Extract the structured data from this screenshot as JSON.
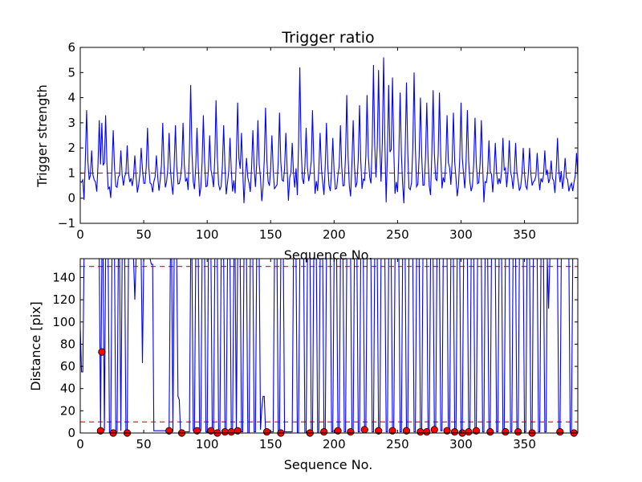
{
  "chart_data": [
    {
      "type": "line",
      "title": "Trigger ratio",
      "xlabel": "Sequence No.",
      "ylabel": "Trigger strength",
      "xlim": [
        0,
        392
      ],
      "ylim": [
        -1,
        6
      ],
      "xticks": [
        0,
        50,
        100,
        150,
        200,
        250,
        300,
        350
      ],
      "yticks": [
        -1,
        0,
        1,
        2,
        3,
        4,
        5,
        6
      ],
      "threshold": 1.0,
      "line_color": "#0000ff",
      "threshold_color": "#ff0000",
      "peaks": [
        [
          5,
          3.5
        ],
        [
          9,
          1.9
        ],
        [
          15,
          3.1
        ],
        [
          17,
          3.0
        ],
        [
          20,
          3.3
        ],
        [
          26,
          2.7
        ],
        [
          32,
          1.9
        ],
        [
          37,
          2.1
        ],
        [
          43,
          1.7
        ],
        [
          48,
          2.0
        ],
        [
          53,
          2.8
        ],
        [
          60,
          1.7
        ],
        [
          65,
          3.0
        ],
        [
          70,
          2.6
        ],
        [
          75,
          2.9
        ],
        [
          81,
          3.0
        ],
        [
          87,
          4.5
        ],
        [
          92,
          2.8
        ],
        [
          97,
          3.3
        ],
        [
          102,
          2.5
        ],
        [
          107,
          3.9
        ],
        [
          113,
          2.9
        ],
        [
          118,
          2.4
        ],
        [
          124,
          3.8
        ],
        [
          127,
          2.6
        ],
        [
          131,
          1.6
        ],
        [
          136,
          2.7
        ],
        [
          140,
          3.1
        ],
        [
          146,
          3.6
        ],
        [
          151,
          2.5
        ],
        [
          157,
          3.4
        ],
        [
          162,
          2.6
        ],
        [
          167,
          2.2
        ],
        [
          173,
          5.2
        ],
        [
          178,
          2.8
        ],
        [
          183,
          3.5
        ],
        [
          189,
          2.6
        ],
        [
          194,
          3.0
        ],
        [
          199,
          2.4
        ],
        [
          205,
          2.9
        ],
        [
          210,
          4.1
        ],
        [
          215,
          3.1
        ],
        [
          220,
          3.7
        ],
        [
          226,
          4.1
        ],
        [
          231,
          5.3
        ],
        [
          235,
          5.1
        ],
        [
          239,
          5.6
        ],
        [
          243,
          4.5
        ],
        [
          246,
          4.8
        ],
        [
          252,
          4.2
        ],
        [
          257,
          4.6
        ],
        [
          263,
          5.0
        ],
        [
          268,
          4.0
        ],
        [
          273,
          3.8
        ],
        [
          278,
          4.3
        ],
        [
          283,
          4.2
        ],
        [
          289,
          3.3
        ],
        [
          294,
          3.4
        ],
        [
          300,
          3.8
        ],
        [
          305,
          3.5
        ],
        [
          311,
          3.2
        ],
        [
          316,
          3.1
        ],
        [
          322,
          2.3
        ],
        [
          327,
          2.2
        ],
        [
          333,
          2.4
        ],
        [
          338,
          2.3
        ],
        [
          343,
          2.2
        ],
        [
          349,
          2.0
        ],
        [
          354,
          2.0
        ],
        [
          360,
          1.8
        ],
        [
          366,
          1.9
        ],
        [
          371,
          1.5
        ],
        [
          376,
          2.4
        ],
        [
          382,
          1.6
        ],
        [
          391,
          1.8
        ]
      ]
    },
    {
      "type": "line",
      "title": "",
      "xlabel": "Sequence No.",
      "ylabel": "Distance [pix]",
      "xlim": [
        0,
        392
      ],
      "ylim": [
        0,
        157
      ],
      "xticks": [
        0,
        50,
        100,
        150,
        200,
        250,
        300,
        350
      ],
      "yticks": [
        0,
        20,
        40,
        60,
        80,
        100,
        120,
        140
      ],
      "thresholds": [
        10,
        150
      ],
      "line_color": "#0000ff",
      "threshold_color": "#ff0000",
      "marker_color": "#ff0000",
      "line_points": [
        [
          0,
          95
        ],
        [
          1,
          55
        ],
        [
          2,
          55
        ],
        [
          3,
          157
        ],
        [
          15,
          157
        ],
        [
          16,
          2
        ],
        [
          17,
          157
        ],
        [
          18,
          157
        ],
        [
          19,
          2
        ],
        [
          20,
          157
        ],
        [
          22,
          157
        ],
        [
          23,
          0
        ],
        [
          24,
          0
        ],
        [
          25,
          157
        ],
        [
          27,
          157
        ],
        [
          28,
          1
        ],
        [
          29,
          1
        ],
        [
          30,
          157
        ],
        [
          31,
          157
        ],
        [
          32,
          2
        ],
        [
          33,
          157
        ],
        [
          35,
          157
        ],
        [
          36,
          1
        ],
        [
          37,
          1
        ],
        [
          38,
          157
        ],
        [
          42,
          157
        ],
        [
          43,
          120
        ],
        [
          44,
          157
        ],
        [
          48,
          157
        ],
        [
          49,
          63
        ],
        [
          50,
          157
        ],
        [
          55,
          157
        ],
        [
          56,
          152
        ],
        [
          57,
          152
        ],
        [
          58,
          2
        ],
        [
          59,
          2
        ],
        [
          60,
          2
        ],
        [
          70,
          2
        ],
        [
          71,
          157
        ],
        [
          72,
          157
        ],
        [
          73,
          1
        ],
        [
          74,
          157
        ],
        [
          76,
          157
        ],
        [
          77,
          33
        ],
        [
          78,
          30
        ],
        [
          79,
          2
        ],
        [
          80,
          1
        ],
        [
          86,
          1
        ],
        [
          87,
          157
        ],
        [
          88,
          157
        ],
        [
          89,
          2
        ],
        [
          90,
          2
        ],
        [
          91,
          157
        ],
        [
          93,
          157
        ],
        [
          94,
          2
        ],
        [
          95,
          2
        ],
        [
          96,
          157
        ],
        [
          98,
          157
        ],
        [
          99,
          1
        ],
        [
          100,
          1
        ],
        [
          101,
          157
        ],
        [
          103,
          157
        ],
        [
          104,
          1
        ],
        [
          105,
          1
        ],
        [
          106,
          157
        ],
        [
          108,
          157
        ],
        [
          109,
          1
        ],
        [
          110,
          1
        ],
        [
          111,
          157
        ],
        [
          113,
          157
        ],
        [
          114,
          2
        ],
        [
          115,
          2
        ],
        [
          116,
          157
        ],
        [
          118,
          157
        ],
        [
          119,
          1
        ],
        [
          120,
          1
        ],
        [
          121,
          157
        ],
        [
          122,
          157
        ],
        [
          123,
          2
        ],
        [
          124,
          157
        ],
        [
          126,
          157
        ],
        [
          127,
          1
        ],
        [
          128,
          1
        ],
        [
          129,
          157
        ],
        [
          131,
          157
        ],
        [
          132,
          0
        ],
        [
          133,
          0
        ],
        [
          134,
          157
        ],
        [
          136,
          157
        ],
        [
          137,
          1
        ],
        [
          138,
          1
        ],
        [
          139,
          157
        ],
        [
          141,
          157
        ],
        [
          142,
          3
        ],
        [
          143,
          22
        ],
        [
          144,
          33
        ],
        [
          145,
          33
        ],
        [
          146,
          2
        ],
        [
          147,
          1
        ],
        [
          152,
          1
        ],
        [
          153,
          157
        ],
        [
          155,
          157
        ],
        [
          156,
          0
        ],
        [
          157,
          0
        ],
        [
          158,
          157
        ],
        [
          160,
          157
        ],
        [
          161,
          1
        ],
        [
          167,
          1
        ],
        [
          168,
          157
        ],
        [
          170,
          157
        ],
        [
          171,
          0
        ],
        [
          172,
          0
        ],
        [
          173,
          157
        ],
        [
          176,
          157
        ],
        [
          177,
          0
        ],
        [
          178,
          0
        ],
        [
          179,
          157
        ],
        [
          181,
          157
        ],
        [
          182,
          1
        ],
        [
          183,
          1
        ],
        [
          184,
          157
        ],
        [
          186,
          157
        ],
        [
          187,
          0
        ],
        [
          188,
          0
        ],
        [
          189,
          157
        ],
        [
          191,
          157
        ],
        [
          192,
          1
        ],
        [
          193,
          1
        ],
        [
          194,
          157
        ],
        [
          197,
          157
        ],
        [
          198,
          1
        ],
        [
          199,
          1
        ],
        [
          200,
          157
        ],
        [
          202,
          157
        ],
        [
          203,
          0
        ],
        [
          204,
          0
        ],
        [
          205,
          157
        ],
        [
          207,
          157
        ],
        [
          208,
          1
        ],
        [
          209,
          1
        ],
        [
          210,
          157
        ],
        [
          213,
          157
        ],
        [
          214,
          2
        ],
        [
          215,
          2
        ],
        [
          216,
          157
        ],
        [
          218,
          157
        ],
        [
          219,
          1
        ],
        [
          220,
          1
        ],
        [
          221,
          157
        ],
        [
          223,
          157
        ],
        [
          224,
          2
        ],
        [
          225,
          2
        ],
        [
          226,
          157
        ],
        [
          229,
          157
        ],
        [
          230,
          1
        ],
        [
          231,
          1
        ],
        [
          232,
          157
        ],
        [
          234,
          157
        ],
        [
          235,
          2
        ],
        [
          236,
          2
        ],
        [
          237,
          157
        ],
        [
          240,
          157
        ],
        [
          241,
          1
        ],
        [
          242,
          1
        ],
        [
          243,
          157
        ],
        [
          245,
          157
        ],
        [
          246,
          2
        ],
        [
          247,
          2
        ],
        [
          248,
          157
        ],
        [
          251,
          157
        ],
        [
          252,
          1
        ],
        [
          253,
          1
        ],
        [
          254,
          157
        ],
        [
          256,
          157
        ],
        [
          257,
          1
        ],
        [
          258,
          1
        ],
        [
          259,
          157
        ],
        [
          262,
          157
        ],
        [
          263,
          1
        ],
        [
          264,
          1
        ],
        [
          265,
          157
        ],
        [
          267,
          157
        ],
        [
          268,
          1
        ],
        [
          269,
          1
        ],
        [
          270,
          157
        ],
        [
          273,
          157
        ],
        [
          274,
          2
        ],
        [
          275,
          2
        ],
        [
          276,
          157
        ],
        [
          278,
          157
        ],
        [
          279,
          1
        ],
        [
          280,
          1
        ],
        [
          281,
          157
        ],
        [
          283,
          157
        ],
        [
          284,
          2
        ],
        [
          285,
          2
        ],
        [
          286,
          157
        ],
        [
          289,
          157
        ],
        [
          290,
          1
        ],
        [
          291,
          1
        ],
        [
          292,
          157
        ],
        [
          294,
          157
        ],
        [
          295,
          1
        ],
        [
          296,
          1
        ],
        [
          297,
          157
        ],
        [
          299,
          157
        ],
        [
          300,
          1
        ],
        [
          301,
          1
        ],
        [
          302,
          157
        ],
        [
          305,
          157
        ],
        [
          306,
          1
        ],
        [
          307,
          1
        ],
        [
          308,
          157
        ],
        [
          310,
          157
        ],
        [
          311,
          1
        ],
        [
          312,
          1
        ],
        [
          313,
          157
        ],
        [
          316,
          157
        ],
        [
          317,
          1
        ],
        [
          318,
          1
        ],
        [
          319,
          157
        ],
        [
          321,
          157
        ],
        [
          322,
          1
        ],
        [
          323,
          1
        ],
        [
          324,
          157
        ],
        [
          327,
          157
        ],
        [
          328,
          1
        ],
        [
          329,
          1
        ],
        [
          330,
          157
        ],
        [
          332,
          157
        ],
        [
          333,
          1
        ],
        [
          334,
          1
        ],
        [
          335,
          157
        ],
        [
          338,
          157
        ],
        [
          339,
          1
        ],
        [
          340,
          1
        ],
        [
          341,
          157
        ],
        [
          343,
          157
        ],
        [
          344,
          1
        ],
        [
          345,
          1
        ],
        [
          346,
          157
        ],
        [
          349,
          157
        ],
        [
          350,
          1
        ],
        [
          351,
          1
        ],
        [
          352,
          157
        ],
        [
          354,
          157
        ],
        [
          355,
          1
        ],
        [
          356,
          1
        ],
        [
          357,
          157
        ],
        [
          360,
          157
        ],
        [
          361,
          1
        ],
        [
          362,
          1
        ],
        [
          363,
          157
        ],
        [
          365,
          157
        ],
        [
          366,
          1
        ],
        [
          367,
          1
        ],
        [
          368,
          157
        ],
        [
          369,
          112
        ],
        [
          370,
          157
        ],
        [
          376,
          157
        ],
        [
          377,
          1
        ],
        [
          378,
          1
        ],
        [
          379,
          157
        ],
        [
          385,
          157
        ],
        [
          386,
          1
        ],
        [
          387,
          1
        ],
        [
          388,
          157
        ],
        [
          392,
          157
        ]
      ],
      "markers": [
        [
          16,
          2
        ],
        [
          17,
          73
        ],
        [
          26,
          0
        ],
        [
          37,
          0
        ],
        [
          70,
          2
        ],
        [
          80,
          0
        ],
        [
          92,
          2
        ],
        [
          103,
          2
        ],
        [
          108,
          0
        ],
        [
          114,
          1
        ],
        [
          119,
          1
        ],
        [
          124,
          2
        ],
        [
          147,
          1
        ],
        [
          158,
          0
        ],
        [
          181,
          0
        ],
        [
          192,
          1
        ],
        [
          203,
          2
        ],
        [
          213,
          1
        ],
        [
          224,
          3
        ],
        [
          235,
          2
        ],
        [
          246,
          2
        ],
        [
          257,
          2
        ],
        [
          268,
          1
        ],
        [
          273,
          1
        ],
        [
          279,
          3
        ],
        [
          289,
          2
        ],
        [
          295,
          1
        ],
        [
          301,
          0
        ],
        [
          306,
          1
        ],
        [
          312,
          2
        ],
        [
          323,
          1
        ],
        [
          335,
          1
        ],
        [
          345,
          1
        ],
        [
          356,
          0
        ],
        [
          378,
          1
        ],
        [
          389,
          0
        ]
      ]
    }
  ]
}
